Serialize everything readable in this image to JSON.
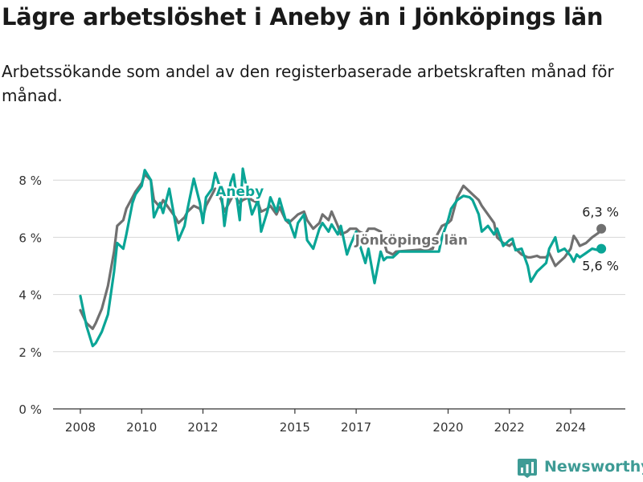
{
  "title": "Lägre arbetslöshet i Aneby än i Jönköpings län",
  "subtitle": "Arbetssökande som andel av den registerbaserade arbetskraften månad för månad.",
  "brand": {
    "name": "Newsworthy",
    "color": "#3e9b95"
  },
  "colors": {
    "aneby": "#0aa596",
    "lan": "#707070",
    "grid": "#d6d6d6",
    "axis": "#333333"
  },
  "chart_data": {
    "type": "line",
    "title": "Lägre arbetslöshet i Aneby än i Jönköpings län",
    "subtitle": "Arbetssökande som andel av den registerbaserade arbetskraften månad för månad.",
    "xlabel": "",
    "ylabel": "",
    "xlim": [
      2007.58,
      2025.75
    ],
    "ylim": [
      0,
      8.5
    ],
    "y_ticks": [
      0,
      2,
      4,
      6,
      8
    ],
    "y_tick_labels": [
      "0 %",
      "2 %",
      "4 %",
      "6 %",
      "8 %"
    ],
    "x_ticks": [
      2008,
      2010,
      2012,
      2015,
      2017,
      2020,
      2022,
      2024
    ],
    "x_tick_labels": [
      "2008",
      "2010",
      "2012",
      "2015",
      "2017",
      "2020",
      "2022",
      "2024"
    ],
    "grid": "horizontal",
    "legend": "none",
    "series": [
      {
        "name": "Aneby",
        "color": "#0aa596",
        "end_label": "5,6 %",
        "x": [
          2008.0,
          2008.2,
          2008.4,
          2008.5,
          2008.7,
          2008.9,
          2009.1,
          2009.2,
          2009.4,
          2009.5,
          2009.7,
          2009.8,
          2010.0,
          2010.1,
          2010.3,
          2010.4,
          2010.6,
          2010.7,
          2010.9,
          2011.1,
          2011.2,
          2011.4,
          2011.5,
          2011.7,
          2011.9,
          2012.0,
          2012.1,
          2012.3,
          2012.4,
          2012.6,
          2012.7,
          2012.9,
          2013.0,
          2013.2,
          2013.3,
          2013.5,
          2013.6,
          2013.8,
          2013.9,
          2014.1,
          2014.2,
          2014.4,
          2014.5,
          2014.7,
          2014.8,
          2015.0,
          2015.1,
          2015.3,
          2015.4,
          2015.6,
          2015.8,
          2015.9,
          2016.1,
          2016.2,
          2016.4,
          2016.5,
          2016.7,
          2016.8,
          2017.0,
          2017.1,
          2017.3,
          2017.4,
          2017.6,
          2017.8,
          2017.9,
          2018.0,
          2018.2,
          2018.3,
          2018.4,
          2019.7,
          2019.8,
          2020.0,
          2020.1,
          2020.3,
          2020.5,
          2020.7,
          2020.8,
          2021.0,
          2021.1,
          2021.3,
          2021.5,
          2021.6,
          2021.8,
          2022.0,
          2022.1,
          2022.2,
          2022.4,
          2022.6,
          2022.7,
          2022.9,
          2023.0,
          2023.2,
          2023.3,
          2023.5,
          2023.6,
          2023.8,
          2024.0,
          2024.1,
          2024.2,
          2024.3,
          2024.5,
          2024.7,
          2024.9,
          2025.0
        ],
        "y": [
          3.95,
          2.9,
          2.2,
          2.3,
          2.7,
          3.3,
          4.8,
          5.8,
          5.6,
          6.1,
          7.2,
          7.5,
          7.8,
          8.35,
          8.0,
          6.7,
          7.2,
          6.85,
          7.7,
          6.5,
          5.9,
          6.4,
          7.0,
          8.05,
          7.2,
          6.5,
          7.4,
          7.7,
          8.25,
          7.6,
          6.4,
          7.9,
          8.2,
          6.6,
          8.4,
          7.3,
          6.8,
          7.3,
          6.2,
          6.9,
          7.4,
          6.9,
          7.35,
          6.6,
          6.6,
          6.0,
          6.5,
          6.8,
          5.9,
          5.6,
          6.3,
          6.5,
          6.2,
          6.45,
          6.1,
          6.4,
          5.4,
          5.7,
          6.2,
          5.8,
          5.1,
          5.6,
          4.4,
          5.5,
          5.2,
          5.3,
          5.3,
          5.4,
          5.5,
          5.5,
          6.0,
          6.6,
          7.0,
          7.3,
          7.45,
          7.4,
          7.3,
          6.8,
          6.2,
          6.4,
          6.1,
          6.3,
          5.7,
          5.9,
          5.95,
          5.55,
          5.6,
          5.0,
          4.45,
          4.8,
          4.9,
          5.1,
          5.6,
          6.0,
          5.5,
          5.6,
          5.35,
          5.15,
          5.4,
          5.3,
          5.45,
          5.6,
          5.55,
          5.6
        ]
      },
      {
        "name": "Jönköpings län",
        "color": "#707070",
        "end_label": "6,3 %",
        "x": [
          2008.0,
          2008.2,
          2008.4,
          2008.5,
          2008.7,
          2008.9,
          2009.1,
          2009.2,
          2009.4,
          2009.5,
          2009.7,
          2009.8,
          2010.0,
          2010.1,
          2010.3,
          2010.4,
          2010.6,
          2010.7,
          2010.9,
          2011.1,
          2011.2,
          2011.4,
          2011.5,
          2011.7,
          2011.9,
          2012.0,
          2012.1,
          2012.3,
          2012.4,
          2012.6,
          2012.7,
          2012.9,
          2013.0,
          2013.2,
          2013.3,
          2013.5,
          2013.6,
          2013.8,
          2013.9,
          2014.1,
          2014.2,
          2014.4,
          2014.5,
          2014.7,
          2014.8,
          2015.0,
          2015.1,
          2015.3,
          2015.4,
          2015.6,
          2015.8,
          2015.9,
          2016.1,
          2016.2,
          2016.4,
          2016.5,
          2016.7,
          2016.8,
          2017.0,
          2017.1,
          2017.3,
          2017.4,
          2017.6,
          2017.8,
          2018.0,
          2018.2,
          2018.3,
          2019.5,
          2019.6,
          2019.8,
          2020.0,
          2020.1,
          2020.3,
          2020.5,
          2020.7,
          2020.8,
          2021.0,
          2021.1,
          2021.3,
          2021.5,
          2021.6,
          2021.8,
          2022.0,
          2022.1,
          2022.2,
          2022.4,
          2022.6,
          2022.7,
          2022.9,
          2023.0,
          2023.2,
          2023.3,
          2023.5,
          2023.6,
          2023.8,
          2024.0,
          2024.1,
          2024.2,
          2024.3,
          2024.5,
          2024.7,
          2024.9,
          2025.0
        ],
        "y": [
          3.45,
          3.0,
          2.8,
          3.0,
          3.5,
          4.3,
          5.5,
          6.4,
          6.6,
          7.0,
          7.4,
          7.6,
          7.9,
          8.2,
          8.0,
          7.3,
          7.05,
          7.3,
          7.0,
          6.7,
          6.5,
          6.7,
          6.9,
          7.1,
          7.0,
          6.7,
          7.1,
          7.5,
          7.7,
          7.3,
          6.9,
          7.3,
          7.5,
          7.2,
          7.3,
          7.4,
          7.3,
          7.2,
          6.9,
          7.0,
          7.1,
          6.8,
          7.05,
          6.6,
          6.5,
          6.7,
          6.8,
          6.9,
          6.6,
          6.3,
          6.5,
          6.8,
          6.6,
          6.9,
          6.4,
          6.1,
          6.2,
          6.3,
          6.3,
          6.2,
          6.1,
          6.3,
          6.3,
          6.2,
          5.5,
          5.4,
          5.5,
          5.6,
          6.0,
          6.4,
          6.5,
          6.6,
          7.4,
          7.8,
          7.6,
          7.5,
          7.3,
          7.1,
          6.8,
          6.5,
          6.0,
          5.8,
          5.7,
          5.8,
          5.6,
          5.4,
          5.3,
          5.3,
          5.35,
          5.3,
          5.3,
          5.45,
          5.0,
          5.1,
          5.3,
          5.6,
          6.05,
          5.9,
          5.7,
          5.8,
          6.0,
          6.15,
          6.3
        ]
      }
    ],
    "annotations": [
      {
        "text": "Aneby",
        "series": "Aneby",
        "x": 2013.2,
        "y": 7.45
      },
      {
        "text": "Jönköpings län",
        "series": "Jönköpings län",
        "x": 2018.8,
        "y": 5.75
      }
    ]
  }
}
